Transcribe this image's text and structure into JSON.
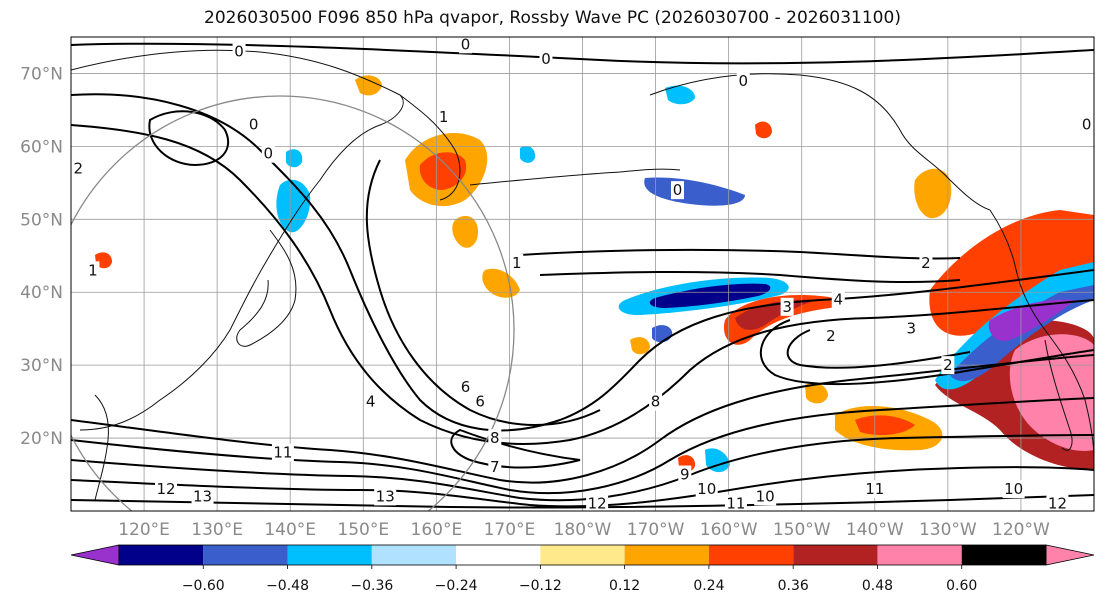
{
  "title": "2026030500 F096 850 hPa qvapor, Rossby Wave PC (2026030700 - 2026031100)",
  "map": {
    "projection": "equirectangular",
    "lon_range": [
      110,
      250
    ],
    "lat_range": [
      10,
      75
    ],
    "lat_ticks": [
      "20°N",
      "30°N",
      "40°N",
      "50°N",
      "60°N",
      "70°N"
    ],
    "lat_values": [
      20,
      30,
      40,
      50,
      60,
      70
    ],
    "lon_ticks": [
      "120°E",
      "130°E",
      "140°E",
      "150°E",
      "160°E",
      "170°E",
      "180°W",
      "170°W",
      "160°W",
      "150°W",
      "140°W",
      "130°W",
      "120°W"
    ],
    "lon_values": [
      120,
      130,
      140,
      150,
      160,
      170,
      180,
      190,
      200,
      210,
      220,
      230,
      240
    ],
    "grid": true
  },
  "colorbar": {
    "ticks": [
      "−0.60",
      "−0.48",
      "−0.36",
      "−0.24",
      "−0.12",
      "0.12",
      "0.24",
      "0.36",
      "0.48",
      "0.60"
    ],
    "tick_values": [
      -0.6,
      -0.48,
      -0.36,
      -0.24,
      -0.12,
      0.12,
      0.24,
      0.36,
      0.48,
      0.6
    ],
    "colors": [
      "#9932cc",
      "#00008b",
      "#3a5fcd",
      "#00bfff",
      "#b0e2ff",
      "#ffffff",
      "#ffe98a",
      "#ffa500",
      "#ff4000",
      "#b22222",
      "#ff82ab"
    ],
    "extend": "both"
  },
  "contour_labels": [
    {
      "text": "0",
      "lon": 133,
      "lat": 73
    },
    {
      "text": "0",
      "lon": 175,
      "lat": 72
    },
    {
      "text": "0",
      "lon": 202,
      "lat": 69
    },
    {
      "text": "0",
      "lon": 249,
      "lat": 63
    },
    {
      "text": "0",
      "lon": 164,
      "lat": 74
    },
    {
      "text": "0",
      "lon": 135,
      "lat": 63
    },
    {
      "text": "0",
      "lon": 137,
      "lat": 59
    },
    {
      "text": "0",
      "lon": 193,
      "lat": 54
    },
    {
      "text": "1",
      "lon": 161,
      "lat": 64
    },
    {
      "text": "1",
      "lon": 171,
      "lat": 44
    },
    {
      "text": "1",
      "lon": 113,
      "lat": 43
    },
    {
      "text": "2",
      "lon": 111,
      "lat": 57
    },
    {
      "text": "2",
      "lon": 227,
      "lat": 44
    },
    {
      "text": "2",
      "lon": 214,
      "lat": 34
    },
    {
      "text": "2",
      "lon": 230,
      "lat": 30
    },
    {
      "text": "3",
      "lon": 208,
      "lat": 38
    },
    {
      "text": "3",
      "lon": 225,
      "lat": 35
    },
    {
      "text": "4",
      "lon": 215,
      "lat": 39
    },
    {
      "text": "4",
      "lon": 151,
      "lat": 25
    },
    {
      "text": "6",
      "lon": 164,
      "lat": 27
    },
    {
      "text": "6",
      "lon": 166,
      "lat": 25
    },
    {
      "text": "8",
      "lon": 190,
      "lat": 25
    },
    {
      "text": "8",
      "lon": 168,
      "lat": 20
    },
    {
      "text": "9",
      "lon": 194,
      "lat": 15
    },
    {
      "text": "10",
      "lon": 197,
      "lat": 13
    },
    {
      "text": "10",
      "lon": 205,
      "lat": 12
    },
    {
      "text": "10",
      "lon": 239,
      "lat": 13
    },
    {
      "text": "11",
      "lon": 201,
      "lat": 11
    },
    {
      "text": "11",
      "lon": 220,
      "lat": 13
    },
    {
      "text": "12",
      "lon": 182,
      "lat": 11
    },
    {
      "text": "12",
      "lon": 245,
      "lat": 11
    },
    {
      "text": "12",
      "lon": 123,
      "lat": 13
    },
    {
      "text": "13",
      "lon": 128,
      "lat": 12
    },
    {
      "text": "13",
      "lon": 153,
      "lat": 12
    },
    {
      "text": "7",
      "lon": 168,
      "lat": 16
    },
    {
      "text": "11",
      "lon": 139,
      "lat": 18
    }
  ]
}
